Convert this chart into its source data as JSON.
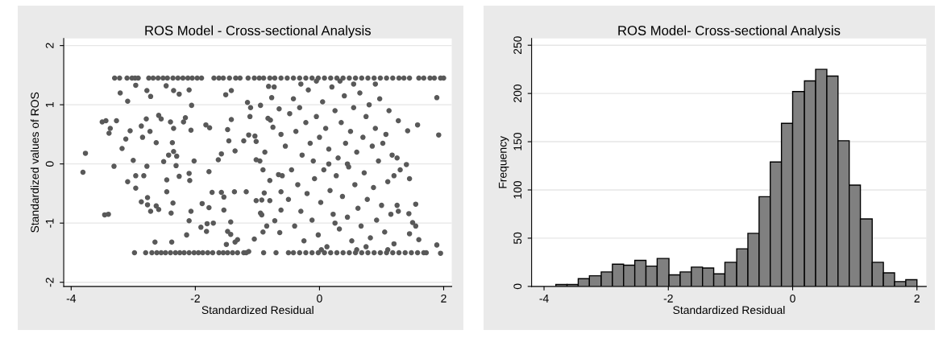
{
  "chart_data": [
    {
      "type": "scatter",
      "title": "ROS Model - Cross-sectional Analysis",
      "xlabel": "Standardized Residual",
      "ylabel": "Standardized values of ROS",
      "xlim": [
        -4.12,
        2.13
      ],
      "ylim": [
        -2.07,
        2.12
      ],
      "xticks": [
        -4,
        -2,
        0,
        2
      ],
      "yticks": [
        -2,
        -1,
        0,
        1,
        2
      ],
      "grid": "y",
      "marker": "circle",
      "series": [
        {
          "color": "#595959",
          "x": [
            -3.3,
            -3.22,
            -3.1,
            -3.02,
            -2.97,
            -2.92,
            -2.75,
            -2.68,
            -2.6,
            -2.52,
            -2.45,
            -2.36,
            -2.28,
            -2.2,
            -2.12,
            -2.05,
            -1.97,
            -1.9,
            -1.7,
            -1.62,
            -1.55,
            -1.45,
            -1.35,
            -1.28,
            -1.15,
            -1.05,
            -0.97,
            -0.9,
            -0.8,
            -0.72,
            -0.62,
            -0.52,
            -0.42,
            -0.32,
            -0.22,
            -0.12,
            -0.02,
            0.08,
            0.18,
            0.28,
            0.38,
            0.48,
            0.58,
            0.68,
            0.78,
            0.88,
            0.98,
            1.08,
            1.18,
            1.28,
            1.36,
            1.45,
            1.6,
            1.68,
            1.78,
            1.85,
            1.95,
            2.0,
            -2.98,
            -2.8,
            -2.7,
            -2.62,
            -2.55,
            -2.48,
            -2.4,
            -2.32,
            -2.25,
            -2.18,
            -2.1,
            -2.02,
            -1.95,
            -1.88,
            -1.8,
            -1.72,
            -1.62,
            -1.55,
            -1.48,
            -1.4,
            -1.32,
            -1.22,
            -1.18,
            -0.9,
            -0.7,
            -0.5,
            -0.42,
            -0.32,
            -0.22,
            -0.12,
            -0.02,
            0.08,
            0.18,
            0.28,
            0.38,
            0.48,
            0.58,
            0.68,
            0.78,
            0.88,
            0.98,
            1.08,
            1.18,
            1.28,
            1.38,
            1.48,
            1.58,
            1.68,
            1.72,
            -3.81,
            -3.77,
            -3.5,
            -3.44,
            -3.46,
            -3.4,
            -3.37,
            -3.39,
            -3.27,
            -3.31,
            -3.21,
            -3.18,
            -3.12,
            -3.09,
            -3.09,
            -3.05,
            -3.0,
            -2.96,
            -2.96,
            -2.96,
            -2.87,
            -2.85,
            -2.87,
            -2.83,
            -2.79,
            -2.78,
            -2.78,
            -2.77,
            -2.77,
            -2.73,
            -2.72,
            -2.72,
            -2.65,
            -2.63,
            -2.63,
            -2.59,
            -2.59,
            -2.55,
            -2.51,
            -2.47,
            -2.46,
            -2.46,
            -2.43,
            -2.4,
            -2.39,
            -2.38,
            -2.37,
            -2.36,
            -2.35,
            -2.35,
            -2.35,
            -2.31,
            -2.3,
            -2.26,
            -2.26,
            -2.19,
            -2.16,
            -2.14,
            -2.1,
            -2.1,
            -2.1,
            -2.09,
            -2.07,
            -2.07,
            -2.06,
            -2.02,
            -1.91,
            -1.89,
            -1.83,
            -1.82,
            -1.81,
            -1.78,
            -1.77,
            -1.78,
            -1.73,
            -1.71,
            -1.63,
            -1.58,
            -1.58,
            -1.54,
            -1.54,
            -1.51,
            -1.5,
            -1.48,
            -1.48,
            -1.46,
            -1.42,
            -1.43,
            -1.42,
            -1.43,
            -1.37,
            -1.36,
            -1.36,
            -1.32,
            -1.22,
            -1.18,
            -1.16,
            -1.14,
            -1.14,
            -1.11,
            -1.12,
            -1.05,
            -1.04,
            -1.02,
            -1.02,
            -0.96,
            -1.02,
            -0.95,
            -0.93,
            -0.95,
            -0.93,
            -0.91,
            -0.91,
            -0.89,
            -0.88,
            -0.85,
            -0.83,
            -0.82,
            -0.8,
            -0.8,
            -0.79,
            -0.77,
            -0.75,
            -0.73,
            -0.72,
            -0.66,
            -0.65,
            -0.64,
            -0.62,
            -0.62,
            -0.55,
            -0.5,
            -0.48,
            -0.45,
            -0.42,
            -0.4,
            -0.38,
            -0.35,
            -0.32,
            -0.3,
            -0.28,
            -0.25,
            -0.22,
            -0.2,
            -0.18,
            -0.15,
            -0.12,
            -0.1,
            -0.08,
            -0.05,
            -0.02,
            0.0,
            0.02,
            0.05,
            0.07,
            0.1,
            0.12,
            0.15,
            0.17,
            0.2,
            0.22,
            0.25,
            0.27,
            0.3,
            0.32,
            0.35,
            0.37,
            0.4,
            0.42,
            0.45,
            0.47,
            0.5,
            0.52,
            0.55,
            0.57,
            0.6,
            0.62,
            0.65,
            0.67,
            0.7,
            0.72,
            0.75,
            0.77,
            0.8,
            0.82,
            0.85,
            0.87,
            0.9,
            0.92,
            0.95,
            0.97,
            1.0,
            1.02,
            1.05,
            1.07,
            1.1,
            1.12,
            1.15,
            1.17,
            1.2,
            0.03,
            0.33,
            0.6,
            -0.3,
            0.9,
            1.1,
            -0.6,
            -0.62,
            0.15,
            0.45,
            0.25,
            0.55,
            0.75,
            -0.05,
            1.27,
            1.42,
            1.58,
            1.89,
            1.92,
            1.89,
            1.95,
            1.55,
            1.5,
            1.45,
            1.44,
            1.55,
            1.6,
            1.45,
            1.4,
            1.3,
            1.25,
            1.2,
            1.25,
            1.27
          ],
          "values": [
            1.45,
            1.45,
            1.45,
            1.45,
            1.45,
            1.45,
            1.45,
            1.45,
            1.45,
            1.45,
            1.45,
            1.45,
            1.45,
            1.45,
            1.45,
            1.45,
            1.45,
            1.45,
            1.45,
            1.45,
            1.45,
            1.45,
            1.45,
            1.45,
            1.45,
            1.45,
            1.45,
            1.45,
            1.45,
            1.45,
            1.45,
            1.45,
            1.45,
            1.45,
            1.45,
            1.45,
            1.45,
            1.45,
            1.45,
            1.45,
            1.45,
            1.45,
            1.45,
            1.45,
            1.45,
            1.45,
            1.45,
            1.45,
            1.45,
            1.45,
            1.45,
            1.45,
            1.45,
            1.45,
            1.45,
            1.45,
            1.45,
            1.45,
            -1.5,
            -1.5,
            -1.5,
            -1.5,
            -1.5,
            -1.5,
            -1.5,
            -1.5,
            -1.5,
            -1.5,
            -1.5,
            -1.5,
            -1.5,
            -1.5,
            -1.5,
            -1.5,
            -1.5,
            -1.5,
            -1.5,
            -1.5,
            -1.5,
            -1.5,
            -1.5,
            -1.5,
            -1.5,
            -1.5,
            -1.5,
            -1.5,
            -1.5,
            -1.5,
            -1.5,
            -1.5,
            -1.5,
            -1.5,
            -1.5,
            -1.5,
            -1.5,
            -1.5,
            -1.5,
            -1.5,
            -1.5,
            -1.5,
            -1.5,
            -1.5,
            -1.5,
            -1.5,
            -1.5,
            -1.5,
            -1.5,
            -0.14,
            0.18,
            0.71,
            0.73,
            -0.86,
            -0.85,
            0.6,
            0.52,
            0.73,
            -0.04,
            1.2,
            0.26,
            0.42,
            1.06,
            -0.3,
            0.56,
            0.06,
            1.33,
            -0.2,
            -0.41,
            0.64,
            0.45,
            -0.64,
            -0.2,
            0.76,
            1.24,
            -0.04,
            -0.57,
            -0.69,
            0.55,
            1.14,
            -0.8,
            -1.32,
            0.36,
            -0.71,
            0.82,
            -0.77,
            0.76,
            0.04,
            1.32,
            -0.47,
            -0.27,
            0.15,
            0.71,
            -0.83,
            -1.32,
            0.36,
            -0.66,
            1.24,
            0.6,
            0.21,
            -0.03,
            0.13,
            1.18,
            -0.21,
            0.71,
            0.78,
            -1.2,
            -0.16,
            1.25,
            -0.96,
            -0.28,
            0.57,
            -0.8,
            0.99,
            0.05,
            -1.07,
            -0.67,
            0.66,
            -1.14,
            -1.01,
            -0.13,
            0.61,
            -0.74,
            -0.48,
            -1.0,
            0.07,
            0.17,
            -0.48,
            -0.56,
            -0.78,
            1.17,
            -1.36,
            0.58,
            -1.14,
            0.39,
            0.75,
            -0.98,
            1.24,
            -1.19,
            -0.47,
            0.22,
            -1.32,
            -1.28,
            0.39,
            -0.47,
            1.04,
            0.49,
            -1.48,
            0.95,
            0.8,
            -1.27,
            0.47,
            0.38,
            0.07,
            0.05,
            -0.62,
            0.99,
            -0.61,
            -0.83,
            -0.86,
            -1.15,
            -0.1,
            -0.49,
            0.2,
            -1.05,
            0.77,
            1.31,
            -0.62,
            -0.28,
            0.74,
            1.12,
            0.62,
            1.3,
            -0.96,
            -0.18,
            0.93,
            -1.16,
            -0.78,
            -0.47,
            0.3,
            -0.6,
            0.85,
            -0.1,
            1.1,
            -1.05,
            0.55,
            -0.35,
            0.95,
            -0.8,
            0.15,
            -1.3,
            0.7,
            -0.5,
            1.25,
            0.35,
            -0.95,
            0.05,
            -0.25,
            0.8,
            -1.2,
            0.45,
            -0.65,
            1.05,
            -0.1,
            0.6,
            -1.4,
            0.25,
            -0.45,
            1.3,
            -0.85,
            0.9,
            -0.2,
            0.1,
            -1.1,
            0.7,
            -0.55,
            1.15,
            0.35,
            -0.9,
            -0.05,
            0.55,
            -1.3,
            0.95,
            -0.35,
            0.2,
            -0.75,
            1.2,
            -1.05,
            0.45,
            -0.15,
            0.8,
            -0.6,
            1.0,
            -1.25,
            0.3,
            -0.4,
            0.6,
            -0.95,
            0.05,
            1.1,
            -0.7,
            0.35,
            -1.15,
            0.5,
            -0.3,
            0.9,
            -0.85,
            0.15,
            -1.35,
            -1.45,
            1.4,
            -1.45,
            1.35,
            1.35,
            -1.45,
            -0.2,
            0.5,
            0.0,
            0.0,
            -1.0,
            1.35,
            -1.4,
            1.4,
            0.73,
            0.56,
            0.66,
            1.12,
            0.49,
            -1.37,
            -1.51,
            -1.05,
            -0.99,
            -1.18,
            -0.84,
            -0.68,
            -1.28,
            -0.25,
            -0.01,
            -0.1,
            0.1,
            -0.2,
            -0.7,
            -0.8
          ]
        }
      ]
    },
    {
      "type": "histogram",
      "title": "ROS Model- Cross-sectional Analysis",
      "xlabel": "Standardized Residual",
      "ylabel": "Frequency",
      "xlim": [
        -4.2,
        2.15
      ],
      "ylim": [
        0,
        257
      ],
      "xticks": [
        -4,
        -2,
        0,
        2
      ],
      "yticks": [
        0,
        50,
        100,
        150,
        200,
        250
      ],
      "grid": "y",
      "color": "#808080",
      "bins": [
        -3.81,
        -3.63,
        -3.45,
        -3.27,
        -3.08,
        -2.9,
        -2.72,
        -2.54,
        -2.36,
        -2.18,
        -1.99,
        -1.81,
        -1.63,
        -1.45,
        -1.27,
        -1.09,
        -0.9,
        -0.72,
        -0.54,
        -0.36,
        -0.18,
        0.0,
        0.19,
        0.37,
        0.55,
        0.73,
        0.91,
        1.09,
        1.28,
        1.46,
        1.64,
        1.82,
        2.0
      ],
      "values": [
        2,
        2,
        8,
        11,
        15,
        23,
        22,
        27,
        21,
        29,
        12,
        15,
        20,
        19,
        13,
        25,
        39,
        55,
        93,
        129,
        169,
        202,
        213,
        225,
        218,
        151,
        105,
        70,
        25,
        14,
        5,
        7
      ]
    }
  ]
}
